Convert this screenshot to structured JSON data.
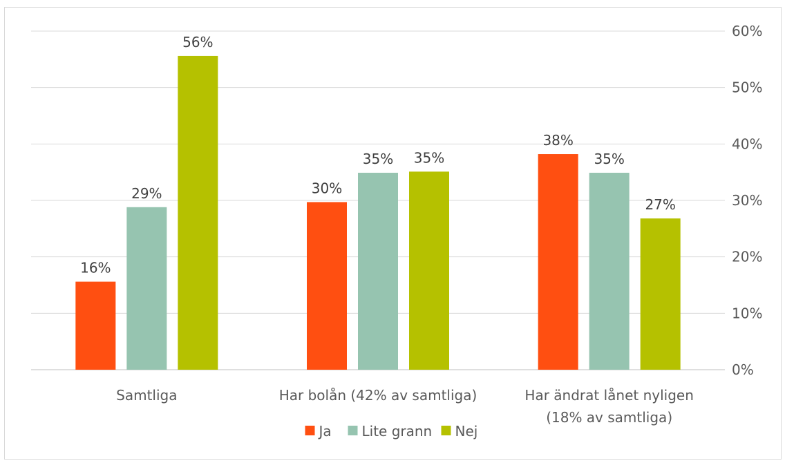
{
  "chart_data": {
    "type": "bar",
    "title": "",
    "xlabel": "",
    "ylabel": "",
    "categories": [
      [
        "Samtliga"
      ],
      [
        "Har bolån (42% av samtliga)"
      ],
      [
        "Har ändrat lånet nyligen",
        "(18% av samtliga)"
      ]
    ],
    "series": [
      {
        "name": "Ja",
        "color": "#ff4f11",
        "values": [
          15.6,
          29.7,
          38.2
        ],
        "labels": [
          "16%",
          "30%",
          "38%"
        ]
      },
      {
        "name": "Lite grann",
        "color": "#96c4b0",
        "values": [
          28.8,
          34.9,
          34.9
        ],
        "labels": [
          "29%",
          "35%",
          "35%"
        ]
      },
      {
        "name": "Nej",
        "color": "#b5c100",
        "values": [
          55.6,
          35.1,
          26.8
        ],
        "labels": [
          "56%",
          "35%",
          "27%"
        ]
      }
    ],
    "ylim": [
      0,
      60
    ],
    "y_ticks": [
      0,
      10,
      20,
      30,
      40,
      50,
      60
    ],
    "y_tick_labels": [
      "0%",
      "10%",
      "20%",
      "30%",
      "40%",
      "50%",
      "60%"
    ],
    "y_axis_side": "right",
    "grid": true,
    "legend_position": "bottom"
  }
}
